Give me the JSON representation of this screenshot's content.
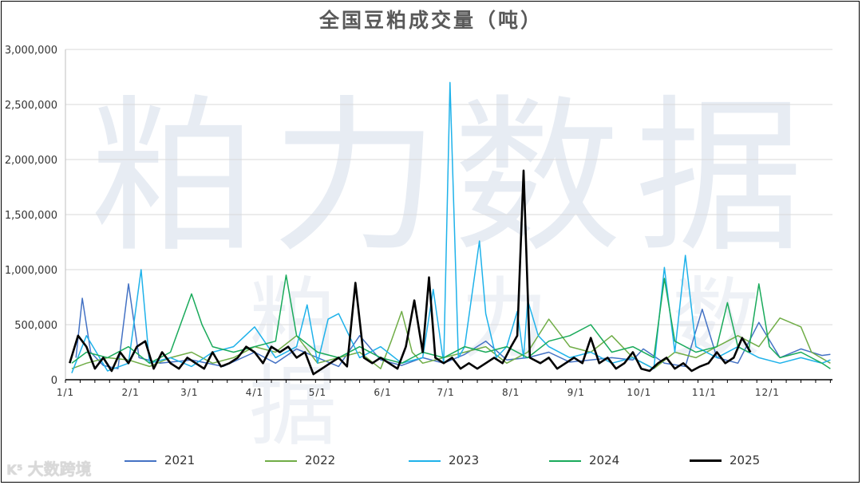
{
  "chart_data": {
    "type": "line",
    "title": "全国豆粕成交量（吨）",
    "ylabel": "",
    "xlabel": "",
    "ylim": [
      0,
      3000000
    ],
    "yticks": [
      "3,000,000",
      "2,500,000",
      "2,000,000",
      "1,500,000",
      "1,000,000",
      "500,000",
      "0"
    ],
    "xticks": [
      "1/1",
      "2/1",
      "3/1",
      "4/1",
      "5/1",
      "6/1",
      "7/1",
      "8/1",
      "9/1",
      "10/1",
      "11/1",
      "12/1"
    ],
    "grid": "horizontal",
    "legend": "bottom",
    "series": [
      {
        "name": "2021",
        "color": "#4472c4",
        "points": [
          [
            5,
            200000
          ],
          [
            8,
            740000
          ],
          [
            12,
            250000
          ],
          [
            18,
            130000
          ],
          [
            25,
            100000
          ],
          [
            30,
            870000
          ],
          [
            35,
            200000
          ],
          [
            45,
            150000
          ],
          [
            60,
            180000
          ],
          [
            75,
            120000
          ],
          [
            90,
            250000
          ],
          [
            100,
            150000
          ],
          [
            110,
            280000
          ],
          [
            120,
            200000
          ],
          [
            130,
            120000
          ],
          [
            140,
            400000
          ],
          [
            150,
            180000
          ],
          [
            160,
            130000
          ],
          [
            170,
            200000
          ],
          [
            180,
            150000
          ],
          [
            190,
            230000
          ],
          [
            200,
            350000
          ],
          [
            210,
            180000
          ],
          [
            220,
            200000
          ],
          [
            230,
            250000
          ],
          [
            240,
            160000
          ],
          [
            250,
            180000
          ],
          [
            260,
            200000
          ],
          [
            270,
            180000
          ],
          [
            275,
            280000
          ],
          [
            285,
            150000
          ],
          [
            295,
            120000
          ],
          [
            303,
            640000
          ],
          [
            310,
            200000
          ],
          [
            320,
            150000
          ],
          [
            330,
            520000
          ],
          [
            340,
            200000
          ],
          [
            350,
            280000
          ],
          [
            360,
            220000
          ],
          [
            364,
            230000
          ]
        ]
      },
      {
        "name": "2022",
        "color": "#70ad47",
        "points": [
          [
            3,
            100000
          ],
          [
            10,
            150000
          ],
          [
            20,
            200000
          ],
          [
            30,
            180000
          ],
          [
            40,
            120000
          ],
          [
            50,
            200000
          ],
          [
            60,
            250000
          ],
          [
            70,
            150000
          ],
          [
            80,
            200000
          ],
          [
            90,
            300000
          ],
          [
            100,
            250000
          ],
          [
            110,
            400000
          ],
          [
            120,
            150000
          ],
          [
            130,
            200000
          ],
          [
            140,
            250000
          ],
          [
            150,
            100000
          ],
          [
            155,
            350000
          ],
          [
            160,
            620000
          ],
          [
            165,
            250000
          ],
          [
            170,
            150000
          ],
          [
            180,
            200000
          ],
          [
            190,
            250000
          ],
          [
            200,
            300000
          ],
          [
            210,
            150000
          ],
          [
            220,
            250000
          ],
          [
            230,
            550000
          ],
          [
            240,
            300000
          ],
          [
            250,
            250000
          ],
          [
            260,
            400000
          ],
          [
            270,
            200000
          ],
          [
            280,
            100000
          ],
          [
            290,
            250000
          ],
          [
            300,
            200000
          ],
          [
            310,
            300000
          ],
          [
            320,
            400000
          ],
          [
            330,
            300000
          ],
          [
            340,
            560000
          ],
          [
            350,
            480000
          ],
          [
            355,
            250000
          ],
          [
            364,
            150000
          ]
        ]
      },
      {
        "name": "2023",
        "color": "#1fb2ea",
        "points": [
          [
            3,
            60000
          ],
          [
            10,
            400000
          ],
          [
            20,
            80000
          ],
          [
            30,
            150000
          ],
          [
            36,
            1000000
          ],
          [
            40,
            150000
          ],
          [
            50,
            200000
          ],
          [
            60,
            120000
          ],
          [
            70,
            250000
          ],
          [
            80,
            300000
          ],
          [
            90,
            480000
          ],
          [
            100,
            200000
          ],
          [
            110,
            300000
          ],
          [
            115,
            680000
          ],
          [
            120,
            150000
          ],
          [
            125,
            550000
          ],
          [
            130,
            600000
          ],
          [
            140,
            200000
          ],
          [
            150,
            300000
          ],
          [
            160,
            150000
          ],
          [
            170,
            200000
          ],
          [
            175,
            820000
          ],
          [
            180,
            150000
          ],
          [
            183,
            2700000
          ],
          [
            187,
            200000
          ],
          [
            190,
            300000
          ],
          [
            197,
            1260000
          ],
          [
            200,
            600000
          ],
          [
            205,
            200000
          ],
          [
            210,
            300000
          ],
          [
            215,
            620000
          ],
          [
            218,
            200000
          ],
          [
            220,
            720000
          ],
          [
            225,
            400000
          ],
          [
            230,
            300000
          ],
          [
            240,
            200000
          ],
          [
            250,
            250000
          ],
          [
            260,
            150000
          ],
          [
            270,
            200000
          ],
          [
            280,
            100000
          ],
          [
            285,
            1020000
          ],
          [
            290,
            250000
          ],
          [
            295,
            1130000
          ],
          [
            300,
            300000
          ],
          [
            310,
            200000
          ],
          [
            320,
            300000
          ],
          [
            330,
            200000
          ],
          [
            340,
            150000
          ],
          [
            350,
            200000
          ],
          [
            360,
            150000
          ],
          [
            364,
            180000
          ]
        ]
      },
      {
        "name": "2024",
        "color": "#1aaa5b",
        "points": [
          [
            3,
            150000
          ],
          [
            10,
            250000
          ],
          [
            20,
            200000
          ],
          [
            30,
            300000
          ],
          [
            40,
            150000
          ],
          [
            50,
            250000
          ],
          [
            60,
            780000
          ],
          [
            65,
            500000
          ],
          [
            70,
            300000
          ],
          [
            80,
            250000
          ],
          [
            90,
            300000
          ],
          [
            100,
            350000
          ],
          [
            105,
            950000
          ],
          [
            110,
            400000
          ],
          [
            120,
            250000
          ],
          [
            130,
            200000
          ],
          [
            140,
            300000
          ],
          [
            150,
            200000
          ],
          [
            160,
            150000
          ],
          [
            170,
            250000
          ],
          [
            180,
            200000
          ],
          [
            190,
            300000
          ],
          [
            200,
            250000
          ],
          [
            210,
            300000
          ],
          [
            220,
            200000
          ],
          [
            230,
            350000
          ],
          [
            240,
            400000
          ],
          [
            250,
            500000
          ],
          [
            260,
            250000
          ],
          [
            270,
            300000
          ],
          [
            280,
            200000
          ],
          [
            285,
            920000
          ],
          [
            290,
            350000
          ],
          [
            300,
            250000
          ],
          [
            310,
            300000
          ],
          [
            315,
            700000
          ],
          [
            320,
            300000
          ],
          [
            325,
            250000
          ],
          [
            330,
            870000
          ],
          [
            335,
            300000
          ],
          [
            340,
            200000
          ],
          [
            350,
            250000
          ],
          [
            360,
            150000
          ],
          [
            364,
            100000
          ]
        ]
      },
      {
        "name": "2025",
        "color": "#000000",
        "points": [
          [
            2,
            150000
          ],
          [
            6,
            400000
          ],
          [
            10,
            300000
          ],
          [
            14,
            100000
          ],
          [
            18,
            200000
          ],
          [
            22,
            80000
          ],
          [
            26,
            250000
          ],
          [
            30,
            150000
          ],
          [
            34,
            300000
          ],
          [
            38,
            350000
          ],
          [
            42,
            100000
          ],
          [
            46,
            250000
          ],
          [
            50,
            150000
          ],
          [
            54,
            100000
          ],
          [
            58,
            200000
          ],
          [
            62,
            150000
          ],
          [
            66,
            100000
          ],
          [
            70,
            250000
          ],
          [
            74,
            120000
          ],
          [
            78,
            150000
          ],
          [
            82,
            200000
          ],
          [
            86,
            300000
          ],
          [
            90,
            250000
          ],
          [
            94,
            150000
          ],
          [
            98,
            300000
          ],
          [
            102,
            250000
          ],
          [
            106,
            300000
          ],
          [
            110,
            200000
          ],
          [
            114,
            250000
          ],
          [
            118,
            50000
          ],
          [
            122,
            100000
          ],
          [
            126,
            150000
          ],
          [
            130,
            200000
          ],
          [
            134,
            120000
          ],
          [
            138,
            880000
          ],
          [
            142,
            200000
          ],
          [
            146,
            150000
          ],
          [
            150,
            200000
          ],
          [
            154,
            150000
          ],
          [
            158,
            100000
          ],
          [
            162,
            300000
          ],
          [
            166,
            720000
          ],
          [
            170,
            250000
          ],
          [
            173,
            930000
          ],
          [
            176,
            200000
          ],
          [
            180,
            150000
          ],
          [
            184,
            200000
          ],
          [
            188,
            100000
          ],
          [
            192,
            150000
          ],
          [
            196,
            100000
          ],
          [
            200,
            150000
          ],
          [
            204,
            200000
          ],
          [
            208,
            150000
          ],
          [
            212,
            300000
          ],
          [
            215,
            400000
          ],
          [
            218,
            1900000
          ],
          [
            221,
            200000
          ],
          [
            226,
            150000
          ],
          [
            230,
            200000
          ],
          [
            234,
            100000
          ],
          [
            238,
            150000
          ],
          [
            242,
            200000
          ],
          [
            246,
            150000
          ],
          [
            250,
            380000
          ],
          [
            254,
            150000
          ],
          [
            258,
            200000
          ],
          [
            262,
            100000
          ],
          [
            266,
            150000
          ],
          [
            270,
            250000
          ],
          [
            274,
            100000
          ],
          [
            278,
            80000
          ],
          [
            282,
            150000
          ],
          [
            286,
            200000
          ],
          [
            290,
            100000
          ],
          [
            294,
            150000
          ],
          [
            298,
            80000
          ],
          [
            302,
            120000
          ],
          [
            306,
            150000
          ],
          [
            310,
            250000
          ],
          [
            314,
            150000
          ],
          [
            318,
            200000
          ],
          [
            322,
            380000
          ],
          [
            326,
            250000
          ]
        ]
      }
    ]
  },
  "watermark": {
    "text": "粕力数据",
    "sub": "粕 力 数 据"
  },
  "brand": {
    "logo": "K⁵",
    "text": "大数跨境"
  }
}
